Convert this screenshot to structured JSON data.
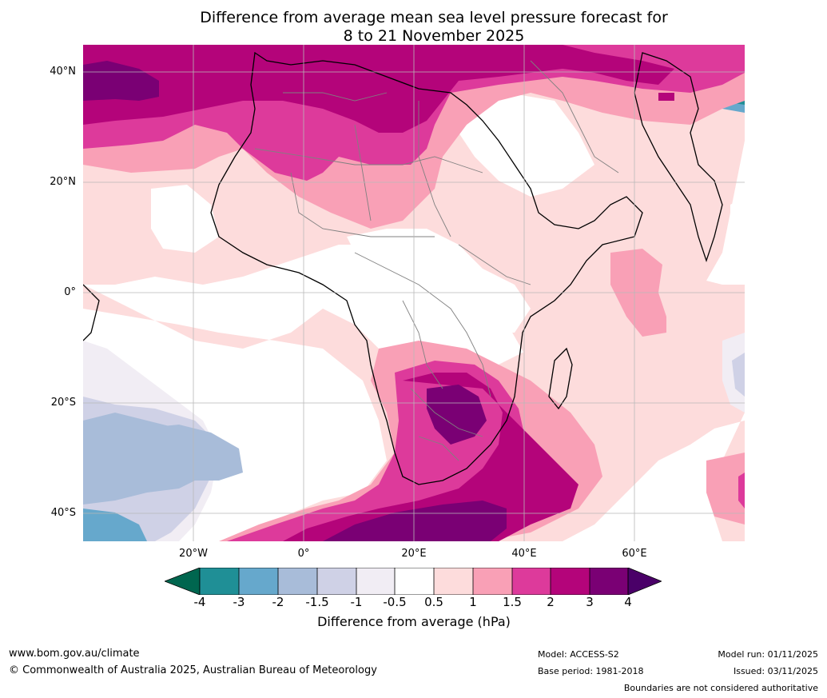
{
  "title": {
    "line1": "Difference from average mean sea level pressure forecast for",
    "line2": "8 to 21 November 2025"
  },
  "axes": {
    "lat_labels": [
      "40°N",
      "20°N",
      "0°",
      "20°S",
      "40°S"
    ],
    "lon_labels": [
      "20°W",
      "0°",
      "20°E",
      "40°E",
      "60°E"
    ]
  },
  "colorbar": {
    "ticks": [
      "-4",
      "-3",
      "-2",
      "-1.5",
      "-1",
      "-0.5",
      "0.5",
      "1",
      "1.5",
      "2",
      "3",
      "4"
    ],
    "label": "Difference from average (hPa)",
    "colors": {
      "below": "#00664f",
      "c1": "#1f8f96",
      "c2": "#66a8cc",
      "c3": "#a8bcd9",
      "c4": "#cfd1e6",
      "c5": "#f1edf4",
      "c6": "#ffffff",
      "c7": "#fddcdc",
      "c8": "#f9a0b6",
      "c9": "#dd3a9b",
      "c10": "#b4047a",
      "c11": "#7a0074",
      "above": "#4a0068"
    }
  },
  "footer": {
    "website": "www.bom.gov.au/climate",
    "copyright": "© Commonwealth of Australia 2025, Australian Bureau of Meteorology",
    "model": "Model: ACCESS-S2",
    "base_period": "Base period: 1981-2018",
    "model_run": "Model run: 01/11/2025",
    "issued": "Issued: 03/11/2025",
    "disclaimer": "Boundaries are not considered authoritative"
  }
}
